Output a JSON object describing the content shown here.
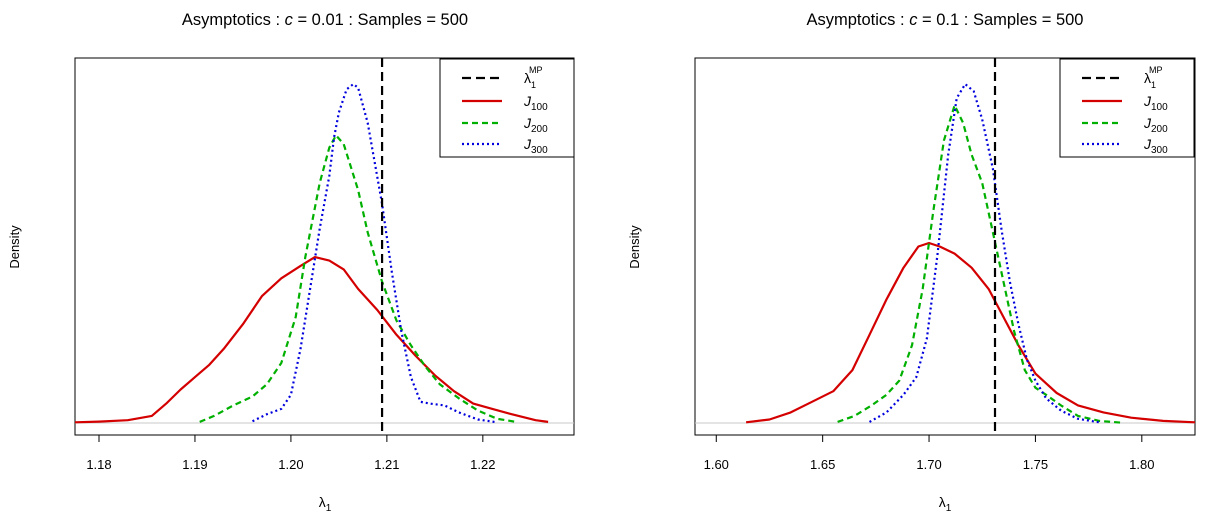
{
  "chart_data": [
    {
      "type": "line",
      "title_prefix": "Asymptotics : ",
      "title_c": "c",
      "title_suffix": " = 0.01 : Samples = 500",
      "ylabel": "Density",
      "xlabel": "λ",
      "xlabel_sub": "1",
      "xlim": [
        1.1775,
        1.2295
      ],
      "ylim": [
        0,
        1.0
      ],
      "xticks": [
        1.18,
        1.19,
        1.2,
        1.21,
        1.22
      ],
      "xtick_labels": [
        "1.18",
        "1.19",
        "1.20",
        "1.21",
        "1.22"
      ],
      "vline": {
        "x": 1.2095,
        "label": "λ",
        "label_sup": "MP",
        "label_sub": "1"
      },
      "legend": [
        {
          "main": "λ",
          "sup": "MP",
          "sub": "1",
          "color": "#000000",
          "dash": "9,5"
        },
        {
          "main": "J",
          "sub": "100",
          "color": "#d40000",
          "dash": ""
        },
        {
          "main": "J",
          "sub": "200",
          "color": "#00b000",
          "dash": "6,4"
        },
        {
          "main": "J",
          "sub": "300",
          "color": "#0000dd",
          "dash": "2,3"
        }
      ],
      "series": [
        {
          "name": "J_100",
          "color": "#d40000",
          "dash": "",
          "x": [
            1.1775,
            1.18,
            1.183,
            1.1855,
            1.187,
            1.1885,
            1.19,
            1.1915,
            1.193,
            1.195,
            1.197,
            1.199,
            1.201,
            1.2025,
            1.204,
            1.2055,
            1.207,
            1.209,
            1.211,
            1.213,
            1.215,
            1.217,
            1.219,
            1.221,
            1.223,
            1.2255,
            1.2268
          ],
          "y": [
            0.002,
            0.004,
            0.008,
            0.02,
            0.055,
            0.095,
            0.13,
            0.165,
            0.21,
            0.28,
            0.36,
            0.41,
            0.445,
            0.47,
            0.46,
            0.435,
            0.38,
            0.32,
            0.25,
            0.19,
            0.135,
            0.09,
            0.055,
            0.04,
            0.025,
            0.008,
            0.003
          ]
        },
        {
          "name": "J_200",
          "color": "#00b000",
          "dash": "6,4",
          "x": [
            1.1905,
            1.192,
            1.194,
            1.196,
            1.1975,
            1.199,
            1.2005,
            1.2015,
            1.203,
            1.204,
            1.2047,
            1.2055,
            1.207,
            1.208,
            1.2095,
            1.211,
            1.2125,
            1.214,
            1.2155,
            1.2175,
            1.2195,
            1.2215,
            1.2235
          ],
          "y": [
            0.003,
            0.02,
            0.05,
            0.075,
            0.11,
            0.17,
            0.3,
            0.47,
            0.68,
            0.78,
            0.815,
            0.79,
            0.66,
            0.54,
            0.4,
            0.29,
            0.22,
            0.16,
            0.11,
            0.07,
            0.035,
            0.012,
            0.003
          ]
        },
        {
          "name": "J_300",
          "color": "#0000dd",
          "dash": "2,3",
          "x": [
            1.196,
            1.1975,
            1.199,
            1.2,
            1.201,
            1.202,
            1.203,
            1.204,
            1.2045,
            1.205,
            1.2058,
            1.2065,
            1.207,
            1.208,
            1.2095,
            1.2105,
            1.2115,
            1.2125,
            1.2135,
            1.2145,
            1.216,
            1.2175,
            1.2195,
            1.2215
          ],
          "y": [
            0.005,
            0.025,
            0.04,
            0.08,
            0.21,
            0.38,
            0.55,
            0.7,
            0.81,
            0.88,
            0.945,
            0.96,
            0.95,
            0.85,
            0.62,
            0.43,
            0.26,
            0.13,
            0.06,
            0.055,
            0.05,
            0.03,
            0.01,
            0.002
          ]
        }
      ]
    },
    {
      "type": "line",
      "title_prefix": "Asymptotics : ",
      "title_c": "c",
      "title_suffix": " = 0.1 : Samples = 500",
      "ylabel": "Density",
      "xlabel": "λ",
      "xlabel_sub": "1",
      "xlim": [
        1.59,
        1.825
      ],
      "ylim": [
        0,
        1.0
      ],
      "xticks": [
        1.6,
        1.65,
        1.7,
        1.75,
        1.8
      ],
      "xtick_labels": [
        "1.60",
        "1.65",
        "1.70",
        "1.75",
        "1.80"
      ],
      "vline": {
        "x": 1.731,
        "label": "λ",
        "label_sup": "MP",
        "label_sub": "1"
      },
      "legend": [
        {
          "main": "λ",
          "sup": "MP",
          "sub": "1",
          "color": "#000000",
          "dash": "9,5"
        },
        {
          "main": "J",
          "sub": "100",
          "color": "#d40000",
          "dash": ""
        },
        {
          "main": "J",
          "sub": "200",
          "color": "#00b000",
          "dash": "6,4"
        },
        {
          "main": "J",
          "sub": "300",
          "color": "#0000dd",
          "dash": "2,3"
        }
      ],
      "series": [
        {
          "name": "J_100",
          "color": "#d40000",
          "dash": "",
          "x": [
            1.614,
            1.625,
            1.635,
            1.645,
            1.655,
            1.664,
            1.672,
            1.68,
            1.688,
            1.695,
            1.7,
            1.705,
            1.712,
            1.72,
            1.728,
            1.735,
            1.742,
            1.75,
            1.76,
            1.77,
            1.782,
            1.795,
            1.81,
            1.825
          ],
          "y": [
            0.002,
            0.01,
            0.03,
            0.06,
            0.09,
            0.15,
            0.25,
            0.35,
            0.44,
            0.5,
            0.51,
            0.5,
            0.48,
            0.44,
            0.38,
            0.3,
            0.22,
            0.14,
            0.085,
            0.05,
            0.03,
            0.015,
            0.006,
            0.002
          ]
        },
        {
          "name": "J_200",
          "color": "#00b000",
          "dash": "6,4",
          "x": [
            1.657,
            1.665,
            1.673,
            1.68,
            1.686,
            1.692,
            1.697,
            1.702,
            1.707,
            1.712,
            1.716,
            1.72,
            1.725,
            1.73,
            1.735,
            1.74,
            1.745,
            1.75,
            1.755,
            1.762,
            1.77,
            1.78,
            1.79
          ],
          "y": [
            0.003,
            0.02,
            0.05,
            0.08,
            0.12,
            0.22,
            0.38,
            0.6,
            0.8,
            0.9,
            0.85,
            0.76,
            0.68,
            0.54,
            0.4,
            0.26,
            0.15,
            0.1,
            0.08,
            0.05,
            0.02,
            0.006,
            0.001
          ]
        },
        {
          "name": "J_300",
          "color": "#0000dd",
          "dash": "2,3",
          "x": [
            1.672,
            1.68,
            1.688,
            1.694,
            1.699,
            1.704,
            1.709,
            1.713,
            1.717,
            1.721,
            1.725,
            1.73,
            1.734,
            1.738,
            1.742,
            1.746,
            1.75,
            1.755,
            1.762,
            1.77,
            1.78
          ],
          "y": [
            0.003,
            0.03,
            0.08,
            0.13,
            0.24,
            0.48,
            0.76,
            0.92,
            0.96,
            0.94,
            0.86,
            0.72,
            0.55,
            0.4,
            0.28,
            0.18,
            0.12,
            0.07,
            0.035,
            0.012,
            0.002
          ]
        }
      ]
    }
  ]
}
